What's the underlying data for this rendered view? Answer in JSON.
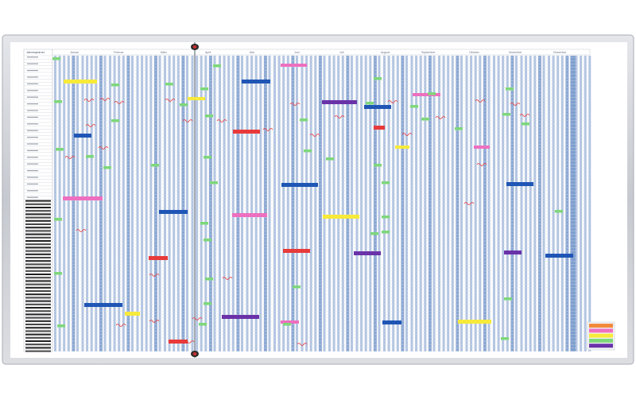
{
  "board": {
    "title": "Jahresplaner",
    "months": [
      "Januar",
      "Februar",
      "März",
      "April",
      "Mai",
      "Juni",
      "Juli",
      "August",
      "September",
      "Oktober",
      "November",
      "Dezember"
    ]
  },
  "colors": {
    "frame": "#c9ccd2",
    "board": "#ffffff",
    "day_column": "#a9bedf",
    "weekend_column": "#7f9fcf",
    "green": "#7ed87a",
    "yellow": "#f7ea3a",
    "pink": "#ee6fbf",
    "red": "#e83a3a",
    "blue": "#1f56b5",
    "purple": "#6a32a8",
    "orange": "#f28a3c"
  },
  "legend_swatches": [
    {
      "color": "#f28a3c"
    },
    {
      "color": "#ee6fbf"
    },
    {
      "color": "#f7ea3a"
    },
    {
      "color": "#7ed87a"
    },
    {
      "color": "#6a32a8"
    }
  ]
}
